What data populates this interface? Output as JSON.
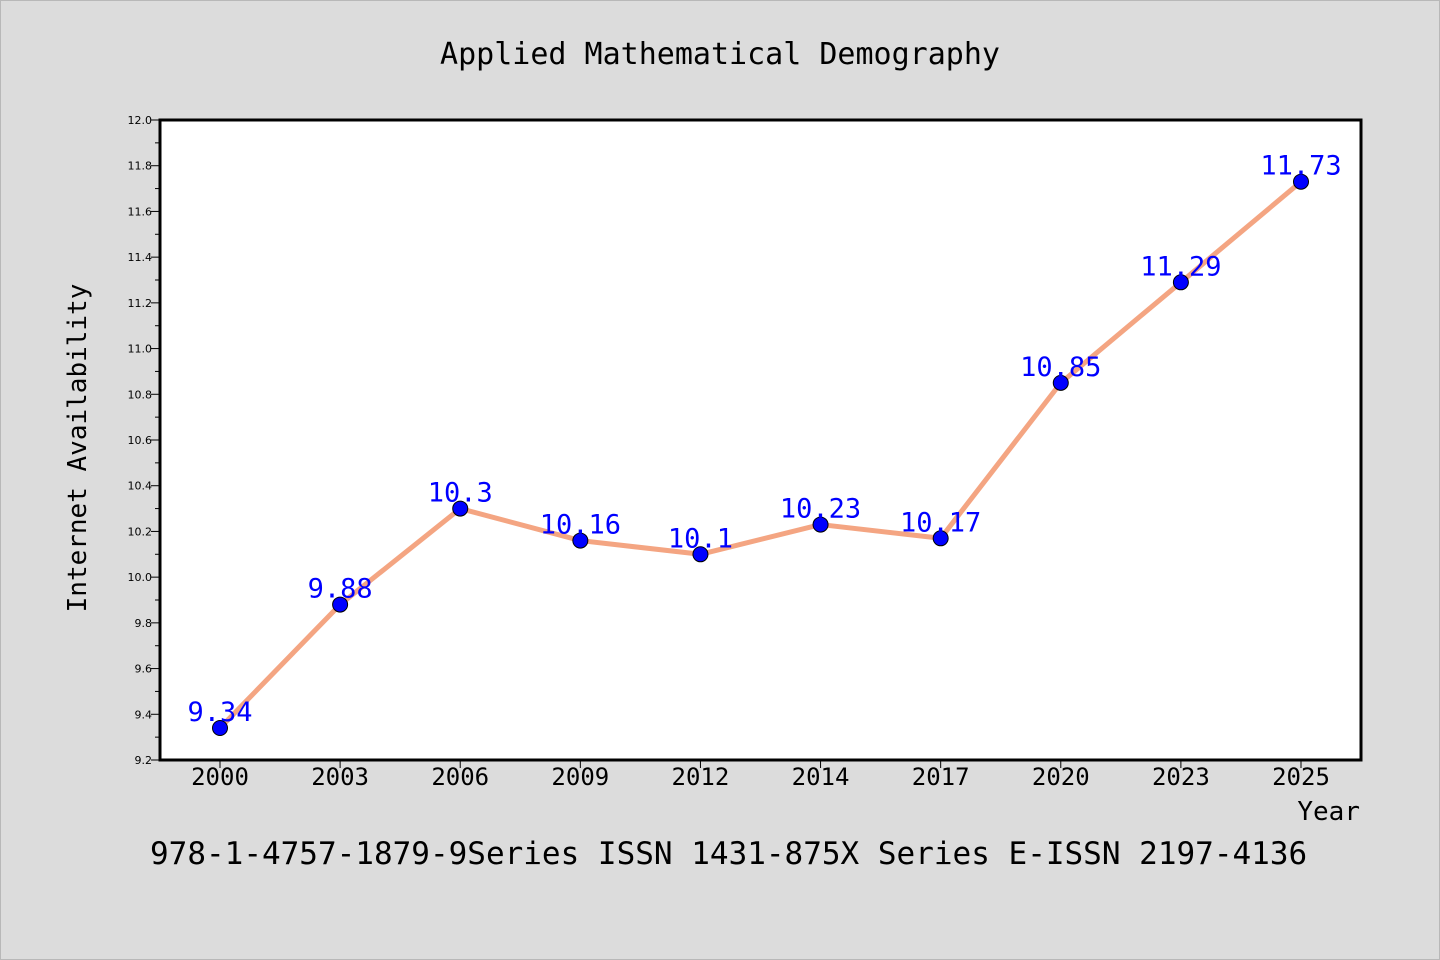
{
  "chart_data": {
    "type": "line",
    "title": "Applied Mathematical Demography",
    "xlabel": "Year",
    "ylabel": "Internet Availability",
    "categories": [
      "2000",
      "2003",
      "2006",
      "2009",
      "2012",
      "2014",
      "2017",
      "2020",
      "2023",
      "2025"
    ],
    "series": [
      {
        "values": [
          9.34,
          9.88,
          10.3,
          10.16,
          10.1,
          10.23,
          10.17,
          10.85,
          11.29,
          11.73
        ]
      }
    ],
    "data_labels": [
      "9.34",
      "9.88",
      "10.3",
      "10.16",
      "10.1",
      "10.23",
      "10.17",
      "10.85",
      "11.29",
      "11.73"
    ],
    "ylim": [
      9.2,
      12.0
    ],
    "yticks": [
      "9.2",
      "9.4",
      "9.6",
      "9.8",
      "10.0",
      "10.2",
      "10.4",
      "10.6",
      "10.8",
      "11.0",
      "11.2",
      "11.4",
      "11.6",
      "11.8",
      "12.0"
    ],
    "grid": false,
    "legend": "none",
    "colors": {
      "line": "#f4a582",
      "marker": "#0000ff",
      "labels": "#0000ff"
    }
  },
  "footer_text": "978-1-4757-1879-9Series ISSN 1431-875X Series E-ISSN 2197-4136"
}
